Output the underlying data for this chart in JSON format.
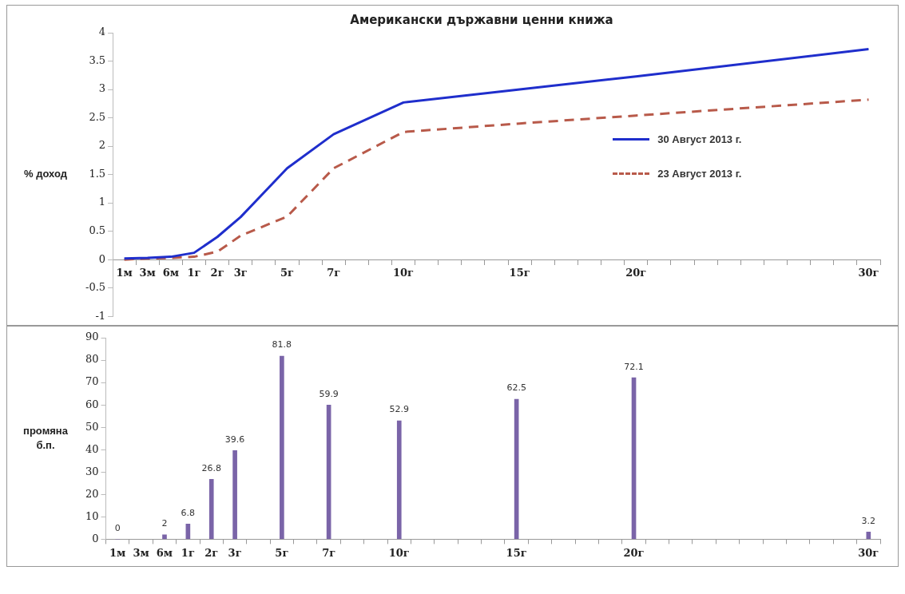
{
  "chart_data": [
    {
      "type": "line",
      "title": "Американски държавни ценни книжа",
      "ylabel": "% доход",
      "categories": [
        "1м",
        "3м",
        "6м",
        "1г",
        "2г",
        "3г",
        null,
        "5г",
        null,
        "7г",
        null,
        null,
        "10г",
        null,
        null,
        null,
        null,
        "15г",
        null,
        null,
        null,
        null,
        "20г",
        null,
        null,
        null,
        null,
        null,
        null,
        null,
        null,
        null,
        "30г"
      ],
      "series": [
        {
          "name": "30 Август 2013 г.",
          "color": "#1f2ecc",
          "line_style": "solid",
          "values": [
            0.02,
            0.03,
            0.05,
            0.12,
            0.4,
            0.75,
            null,
            1.61,
            null,
            2.21,
            null,
            null,
            2.77,
            null,
            null,
            null,
            null,
            3.0,
            null,
            null,
            null,
            null,
            3.23,
            null,
            null,
            null,
            null,
            null,
            null,
            null,
            null,
            null,
            3.71
          ]
        },
        {
          "name": "23 Август 2013 г.",
          "color": "#b85a4a",
          "line_style": "dashed",
          "values": [
            0.0,
            0.02,
            0.03,
            0.05,
            0.14,
            0.42,
            null,
            0.76,
            null,
            1.61,
            null,
            null,
            2.25,
            null,
            null,
            null,
            null,
            2.4,
            null,
            null,
            null,
            null,
            2.54,
            null,
            null,
            null,
            null,
            null,
            null,
            null,
            null,
            null,
            2.82
          ]
        }
      ],
      "ylim": [
        -1,
        4
      ],
      "yticks": [
        -1,
        -0.5,
        0,
        0.5,
        1,
        1.5,
        2,
        2.5,
        3,
        3.5,
        4
      ],
      "grid": false,
      "legend": "right",
      "marker": "none"
    },
    {
      "type": "bar",
      "ylabel": "промяна б.п.",
      "categories": [
        "1м",
        "3м",
        "6м",
        "1г",
        "2г",
        "3г",
        null,
        "5г",
        null,
        "7г",
        null,
        null,
        "10г",
        null,
        null,
        null,
        null,
        "15г",
        null,
        null,
        null,
        null,
        "20г",
        null,
        null,
        null,
        null,
        null,
        null,
        null,
        null,
        null,
        "30г"
      ],
      "values": [
        0,
        null,
        2,
        6.8,
        26.8,
        39.6,
        null,
        81.8,
        null,
        59.9,
        null,
        null,
        52.9,
        null,
        null,
        null,
        null,
        62.5,
        null,
        null,
        null,
        null,
        72.1,
        null,
        null,
        null,
        null,
        null,
        null,
        null,
        null,
        null,
        3.2
      ],
      "color": "#7a64a8",
      "ylim": [
        0,
        90
      ],
      "yticks": [
        0,
        10,
        20,
        30,
        40,
        50,
        60,
        70,
        80,
        90
      ],
      "grid": false,
      "data_labels": true
    }
  ]
}
